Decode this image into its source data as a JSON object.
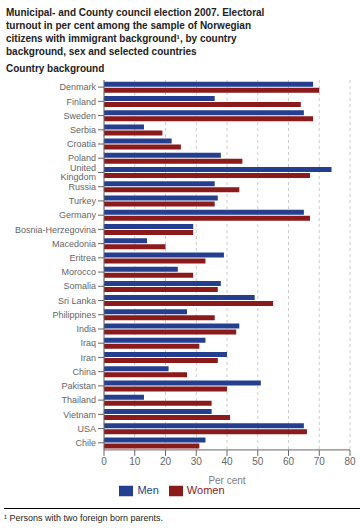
{
  "chart_data": {
    "type": "bar",
    "orientation": "horizontal",
    "title": "Municipal- and County council election 2007. Electoral\nturnout in per cent among the sample of Norwegian\ncitizens with immigrant background¹, by country\nbackground, sex and selected countries",
    "subtitle": "Country background",
    "footnote": "¹ Persons with two foreign born parents.",
    "xlabel": "Per cent",
    "categories": [
      "Denmark",
      "Finland",
      "Sweden",
      "Serbia",
      "Croatia",
      "Poland",
      "United Kingdom",
      "Russia",
      "Turkey",
      "Germany",
      "Bosnia-Herzegovina",
      "Macedonia",
      "Eritrea",
      "Morocco",
      "Somalia",
      "Sri Lanka",
      "Philippines",
      "India",
      "Iraq",
      "Iran",
      "China",
      "Pakistan",
      "Thailand",
      "Vietnam",
      "USA",
      "Chile"
    ],
    "series": [
      {
        "name": "Men",
        "color": "#243f8f",
        "values": [
          68,
          36,
          65,
          13,
          22,
          38,
          74,
          36,
          37,
          65,
          29,
          14,
          39,
          24,
          38,
          49,
          27,
          44,
          33,
          40,
          21,
          51,
          13,
          35,
          65,
          33
        ]
      },
      {
        "name": "Women",
        "color": "#8b1a1a",
        "values": [
          70,
          64,
          68,
          19,
          25,
          45,
          67,
          44,
          36,
          67,
          29,
          20,
          33,
          29,
          37,
          55,
          36,
          43,
          31,
          37,
          27,
          40,
          35,
          41,
          66,
          31
        ]
      }
    ],
    "xlim": [
      0,
      80
    ],
    "xticks": [
      0,
      10,
      20,
      30,
      40,
      50,
      60,
      70,
      80
    ],
    "grid": true,
    "legend": "bottom"
  }
}
